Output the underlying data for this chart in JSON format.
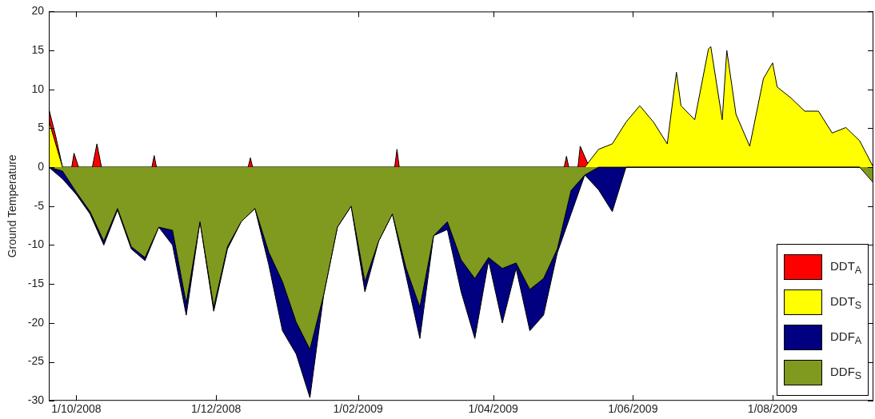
{
  "chart_data": {
    "type": "area",
    "ylabel": "Ground Temperature",
    "xlim": [
      "2008-09-19",
      "2009-09-14"
    ],
    "ylim": [
      -30,
      20
    ],
    "xticks": [
      {
        "value": "2008-10-01",
        "label": "1/10/2008"
      },
      {
        "value": "2008-12-01",
        "label": "1/12/2008"
      },
      {
        "value": "2009-02-01",
        "label": "1/02/2009"
      },
      {
        "value": "2009-04-01",
        "label": "1/04/2009"
      },
      {
        "value": "2009-06-01",
        "label": "1/06/2009"
      },
      {
        "value": "2009-08-01",
        "label": "1/08/2009"
      }
    ],
    "yticks": [
      -30,
      -25,
      -20,
      -15,
      -10,
      -5,
      0,
      5,
      10,
      15,
      20
    ],
    "grid": false,
    "legend": "bottom right",
    "marker": "none",
    "series": [
      {
        "name": "DDT$_{A}$",
        "color": "#ff0000",
        "x": [
          "2008-09-19",
          "2008-09-22",
          "2008-09-25",
          "2008-09-29",
          "2008-09-30",
          "2008-10-02",
          "2008-10-08",
          "2008-10-10",
          "2008-10-12",
          "2008-11-03",
          "2008-11-04",
          "2008-11-05",
          "2008-12-15",
          "2008-12-16",
          "2008-12-17",
          "2009-02-17",
          "2009-02-18",
          "2009-02-19",
          "2009-05-02",
          "2009-05-03",
          "2009-05-04",
          "2009-05-08",
          "2009-05-09",
          "2009-05-13",
          "2009-09-14"
        ],
        "values": [
          7.5,
          4,
          0,
          0,
          1.8,
          0,
          0,
          3,
          0,
          0,
          1.5,
          0,
          0,
          1.2,
          0,
          0,
          2.3,
          0,
          0,
          1.4,
          0,
          0,
          2.7,
          0,
          0
        ]
      },
      {
        "name": "DDT$_{S}$",
        "color": "#ffff00",
        "x": [
          "2008-09-19",
          "2008-09-25",
          "2009-05-11",
          "2009-05-17",
          "2009-05-23",
          "2009-05-29",
          "2009-06-04",
          "2009-06-10",
          "2009-06-16",
          "2009-06-20",
          "2009-06-22",
          "2009-06-28",
          "2009-07-04",
          "2009-07-05",
          "2009-07-10",
          "2009-07-12",
          "2009-07-16",
          "2009-07-22",
          "2009-07-28",
          "2009-08-01",
          "2009-08-03",
          "2009-08-09",
          "2009-08-15",
          "2009-08-21",
          "2009-08-27",
          "2009-09-02",
          "2009-09-08",
          "2009-09-14"
        ],
        "values": [
          6,
          0,
          0,
          2.3,
          3,
          5.8,
          7.9,
          5.8,
          3,
          12.2,
          7.9,
          6.1,
          15.2,
          15.5,
          6.1,
          15,
          6.8,
          2.7,
          11.4,
          13.4,
          10.3,
          8.9,
          7.2,
          7.2,
          4.4,
          5.1,
          3.4,
          0
        ]
      },
      {
        "name": "DDF$_{A}$",
        "color": "#000080",
        "x": [
          "2008-09-19",
          "2008-09-25",
          "2008-10-01",
          "2008-10-07",
          "2008-10-13",
          "2008-10-19",
          "2008-10-25",
          "2008-10-31",
          "2008-11-06",
          "2008-11-12",
          "2008-11-18",
          "2008-11-24",
          "2008-11-30",
          "2008-12-06",
          "2008-12-12",
          "2008-12-18",
          "2008-12-24",
          "2008-12-30",
          "2009-01-05",
          "2009-01-11",
          "2009-01-17",
          "2009-01-23",
          "2009-01-29",
          "2009-02-04",
          "2009-02-10",
          "2009-02-16",
          "2009-02-22",
          "2009-02-28",
          "2009-03-06",
          "2009-03-12",
          "2009-03-18",
          "2009-03-24",
          "2009-03-30",
          "2009-04-05",
          "2009-04-11",
          "2009-04-17",
          "2009-04-23",
          "2009-04-29",
          "2009-05-05",
          "2009-05-11",
          "2009-05-17",
          "2009-05-23",
          "2009-05-29",
          "2009-09-08",
          "2009-09-14"
        ],
        "values": [
          0,
          -1.5,
          -3.5,
          -6,
          -10,
          -5.5,
          -10.5,
          -12,
          -7.7,
          -10,
          -19,
          -7,
          -18.5,
          -10.5,
          -7,
          -5.3,
          -12.5,
          -21,
          -24,
          -29.6,
          -16.4,
          -7.7,
          -5,
          -16,
          -9.5,
          -6,
          -14,
          -22,
          -8.8,
          -8,
          -16,
          -22,
          -12,
          -20,
          -13,
          -21,
          -19,
          -11,
          -6,
          -1,
          -2.9,
          -5.7,
          0,
          0,
          -1
        ]
      },
      {
        "name": "DDF$_{S}$",
        "color": "#7f9a1e",
        "x": [
          "2008-09-19",
          "2008-09-25",
          "2008-10-01",
          "2008-10-07",
          "2008-10-13",
          "2008-10-19",
          "2008-10-25",
          "2008-10-31",
          "2008-11-06",
          "2008-11-12",
          "2008-11-18",
          "2008-11-24",
          "2008-11-30",
          "2008-12-06",
          "2008-12-12",
          "2008-12-18",
          "2008-12-24",
          "2008-12-30",
          "2009-01-05",
          "2009-01-11",
          "2009-01-17",
          "2009-01-23",
          "2009-01-29",
          "2009-02-04",
          "2009-02-10",
          "2009-02-16",
          "2009-02-22",
          "2009-02-28",
          "2009-03-06",
          "2009-03-12",
          "2009-03-18",
          "2009-03-24",
          "2009-03-30",
          "2009-04-05",
          "2009-04-11",
          "2009-04-17",
          "2009-04-23",
          "2009-04-29",
          "2009-05-05",
          "2009-05-11",
          "2009-05-17",
          "2009-05-23",
          "2009-05-29",
          "2009-09-08",
          "2009-09-14"
        ],
        "values": [
          0,
          -0.5,
          -3.2,
          -5.7,
          -9.5,
          -5.3,
          -10.2,
          -11.6,
          -7.7,
          -8.1,
          -17.5,
          -7,
          -18,
          -10.2,
          -7,
          -5.3,
          -10.9,
          -14.7,
          -19.9,
          -23.4,
          -16.4,
          -7.7,
          -5,
          -14.7,
          -9.5,
          -6,
          -13,
          -18,
          -8.8,
          -7,
          -11.9,
          -14.3,
          -11.6,
          -13,
          -12.3,
          -15.7,
          -14.3,
          -10.5,
          -3,
          -1,
          0,
          0,
          0,
          0,
          -2
        ]
      }
    ]
  }
}
